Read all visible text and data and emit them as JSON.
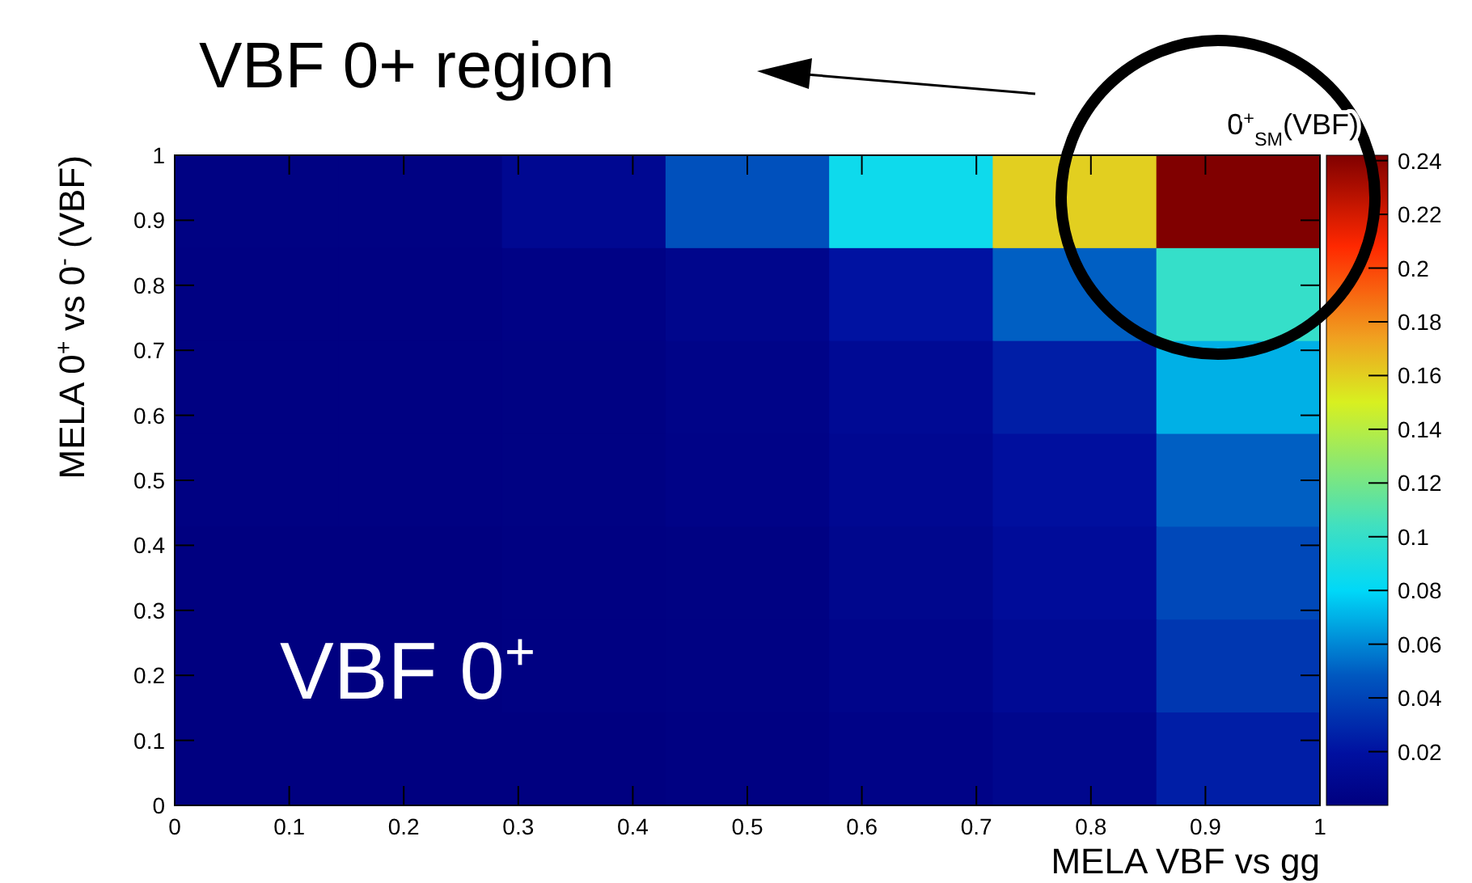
{
  "chart_data": {
    "type": "heatmap",
    "xlabel": "MELA VBF vs gg",
    "ylabel": "MELA 0$^{+}$ vs 0$^{-}$ (VBF)",
    "clabel": "0$^{+}$$_{SM}$(VBF)",
    "annotations": [
      "VBF 0+ region",
      "VBF 0$^{+}$"
    ],
    "xlim": [
      0,
      1
    ],
    "xticks": [
      0,
      0.1,
      0.2,
      0.3,
      0.4,
      0.5,
      0.6,
      0.7,
      0.8,
      0.9,
      1
    ],
    "ylim": [
      0,
      1
    ],
    "yticks": [
      0,
      0.1,
      0.2,
      0.3,
      0.4,
      0.5,
      0.6,
      0.7,
      0.8,
      0.9,
      1
    ],
    "clim": [
      0,
      0.242
    ],
    "cticks": [
      0.02,
      0.04,
      0.06,
      0.08,
      0.1,
      0.12,
      0.14,
      0.16,
      0.18,
      0.2,
      0.22,
      0.24
    ],
    "cells": [
      [
        0.002,
        0.002,
        0.01,
        0.045,
        0.085,
        0.16,
        0.242
      ],
      [
        0.001,
        0.001,
        0.003,
        0.007,
        0.02,
        0.05,
        0.1
      ],
      [
        0.001,
        0.001,
        0.002,
        0.005,
        0.012,
        0.025,
        0.07
      ],
      [
        0.001,
        0.001,
        0.002,
        0.004,
        0.01,
        0.018,
        0.05
      ],
      [
        0,
        0,
        0.001,
        0.002,
        0.008,
        0.015,
        0.042
      ],
      [
        0,
        0,
        0.001,
        0.002,
        0.006,
        0.012,
        0.035
      ],
      [
        0,
        0,
        0,
        0.001,
        0.004,
        0.008,
        0.025
      ]
    ]
  }
}
